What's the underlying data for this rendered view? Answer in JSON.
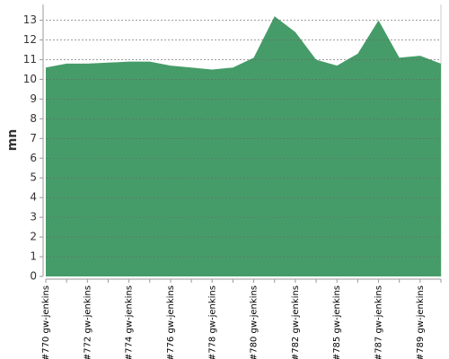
{
  "chart_data": {
    "type": "area",
    "y_label": "mn",
    "categories": [
      "#770 gw-jenkins",
      null,
      "#772 gw-jenkins",
      null,
      "#774 gw-jenkins",
      null,
      "#776 gw-jenkins",
      null,
      "#778 gw-jenkins",
      null,
      "#780 gw-jenkins",
      null,
      "#782 gw-jenkins",
      null,
      "#785 gw-jenkins",
      null,
      "#787 gw-jenkins",
      null,
      "#789 gw-jenkins",
      null
    ],
    "values": [
      10.6,
      10.8,
      10.8,
      10.85,
      10.9,
      10.9,
      10.7,
      10.6,
      10.5,
      10.6,
      11.1,
      13.2,
      12.4,
      11.0,
      10.7,
      11.3,
      13.0,
      11.1,
      11.2,
      10.8
    ],
    "color": "#469c69",
    "ylim": [
      0,
      13.8
    ],
    "yticks": [
      0,
      1,
      2,
      3,
      4,
      5,
      6,
      7,
      8,
      9,
      10,
      11,
      12,
      13
    ],
    "grid": true
  }
}
